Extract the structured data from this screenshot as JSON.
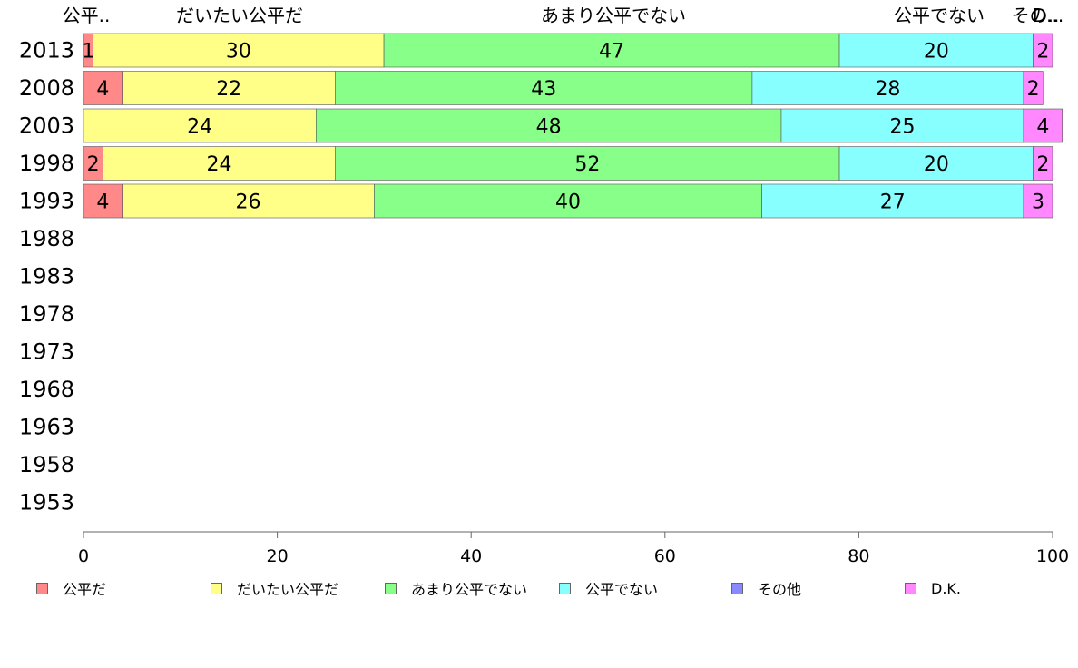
{
  "chart_data": {
    "type": "bar",
    "orientation": "horizontal",
    "stacked": true,
    "categories": [
      "2013",
      "2008",
      "2003",
      "1998",
      "1993",
      "1988",
      "1983",
      "1978",
      "1973",
      "1968",
      "1963",
      "1958",
      "1953"
    ],
    "series": [
      {
        "name": "公平だ",
        "header": "公平..",
        "color": "#ff8888",
        "values": [
          1,
          4,
          0,
          2,
          4,
          null,
          null,
          null,
          null,
          null,
          null,
          null,
          null
        ]
      },
      {
        "name": "だいたい公平だ",
        "header": "だいたい公平だ",
        "color": "#ffff88",
        "values": [
          30,
          22,
          24,
          24,
          26,
          null,
          null,
          null,
          null,
          null,
          null,
          null,
          null
        ]
      },
      {
        "name": "あまり公平でない",
        "header": "あまり公平でない",
        "color": "#88ff88",
        "values": [
          47,
          43,
          48,
          52,
          40,
          null,
          null,
          null,
          null,
          null,
          null,
          null,
          null
        ]
      },
      {
        "name": "公平でない",
        "header": "公平でない",
        "color": "#88ffff",
        "values": [
          20,
          28,
          25,
          20,
          27,
          null,
          null,
          null,
          null,
          null,
          null,
          null,
          null
        ]
      },
      {
        "name": "その他",
        "header": "その..",
        "color": "#8888ff",
        "values": [
          0,
          0,
          0,
          0,
          0,
          null,
          null,
          null,
          null,
          null,
          null,
          null,
          null
        ]
      },
      {
        "name": "D.K.",
        "header": "D...",
        "color": "#ff88ff",
        "values": [
          2,
          2,
          4,
          2,
          3,
          null,
          null,
          null,
          null,
          null,
          null,
          null,
          null
        ]
      }
    ],
    "xlim": [
      0,
      100
    ],
    "xticks": [
      0,
      20,
      40,
      60,
      80,
      100
    ],
    "grid": false,
    "legend_position": "bottom"
  }
}
